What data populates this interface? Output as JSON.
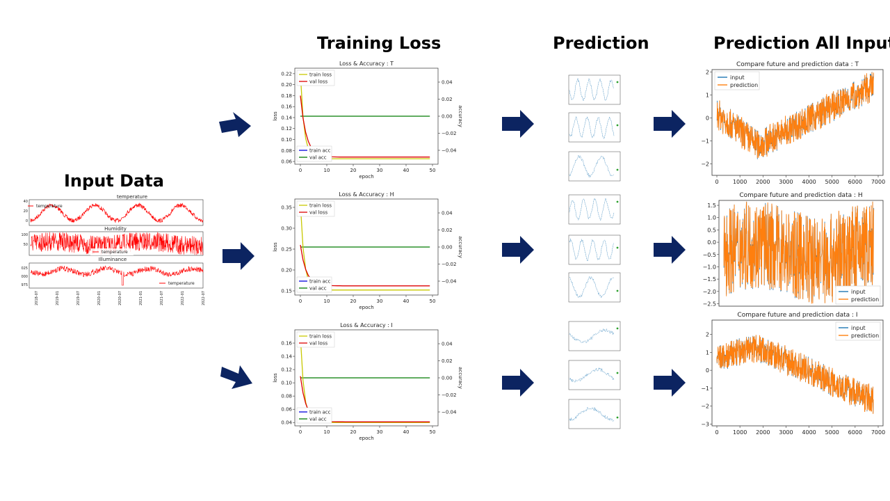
{
  "headings": {
    "input": "Input Data",
    "training": "Training Loss",
    "prediction": "Prediction",
    "prediction_all": "Prediction All Input"
  },
  "colors": {
    "arrow": "#0c2461",
    "red": "#ff0000",
    "train_loss": "#c8c800",
    "val_loss": "#dd0000",
    "train_acc": "#0000dd",
    "val_acc": "#007a00",
    "input": "#1f77b4",
    "prediction": "#ff7f0e"
  },
  "input_panel": {
    "subplots": [
      {
        "title": "temperature",
        "legend": "temperature",
        "yticks": [
          "40",
          "20",
          "0"
        ]
      },
      {
        "title": "Humidity",
        "legend": "temperature",
        "yticks": [
          "100",
          "50"
        ]
      },
      {
        "title": "Illuminance",
        "legend": "temperature",
        "yticks": [
          "1025",
          "1000",
          "975"
        ]
      }
    ],
    "xticks": [
      "2018-07",
      "2019-01",
      "2019-07",
      "2020-01",
      "2020-07",
      "2021-01",
      "2021-07",
      "2022-01",
      "2022-07"
    ]
  },
  "chart_data": [
    {
      "type": "line",
      "title": "Loss & Accuracy : T",
      "xlabel": "epoch",
      "ylabel": "loss",
      "y2label": "accuracy",
      "xlim": [
        0,
        50
      ],
      "xticks": [
        "0",
        "10",
        "20",
        "30",
        "40",
        "50"
      ],
      "ylim": [
        0.055,
        0.23
      ],
      "yticks": [
        "0.22",
        "0.20",
        "0.18",
        "0.16",
        "0.14",
        "0.12",
        "0.10",
        "0.08",
        "0.06"
      ],
      "y2ticks": [
        "0.04",
        "0.02",
        "0.00",
        "−0.02",
        "−0.04"
      ],
      "legend_top": [
        "train loss",
        "val loss"
      ],
      "legend_bottom": [
        "train acc",
        "val acc"
      ],
      "series": [
        {
          "name": "train loss",
          "start": 0.22,
          "end": 0.065
        },
        {
          "name": "val loss",
          "start": 0.18,
          "end": 0.068
        },
        {
          "name": "val acc",
          "value": 0.0
        }
      ]
    },
    {
      "type": "line",
      "title": "Loss & Accuracy : H",
      "xlabel": "epoch",
      "ylabel": "loss",
      "y2label": "accuracy",
      "xlim": [
        0,
        50
      ],
      "xticks": [
        "0",
        "10",
        "20",
        "30",
        "40",
        "50"
      ],
      "ylim": [
        0.14,
        0.37
      ],
      "yticks": [
        "0.35",
        "0.30",
        "0.25",
        "0.20",
        "0.15"
      ],
      "y2ticks": [
        "0.04",
        "0.02",
        "0.00",
        "−0.02",
        "−0.04"
      ],
      "legend_top": [
        "train loss",
        "val loss"
      ],
      "legend_bottom": [
        "train acc",
        "val acc"
      ],
      "series": [
        {
          "name": "train loss",
          "start": 0.36,
          "end": 0.152
        },
        {
          "name": "val loss",
          "start": 0.26,
          "end": 0.162
        },
        {
          "name": "val acc",
          "value": 0.0
        }
      ]
    },
    {
      "type": "line",
      "title": "Loss & Accuracy : I",
      "xlabel": "epoch",
      "ylabel": "loss",
      "y2label": "accuracy",
      "xlim": [
        0,
        50
      ],
      "xticks": [
        "0",
        "10",
        "20",
        "30",
        "40",
        "50"
      ],
      "ylim": [
        0.035,
        0.18
      ],
      "yticks": [
        "0.16",
        "0.14",
        "0.12",
        "0.10",
        "0.08",
        "0.06",
        "0.04"
      ],
      "y2ticks": [
        "0.04",
        "0.02",
        "0.00",
        "−0.02",
        "−0.04"
      ],
      "legend_top": [
        "train loss",
        "val loss"
      ],
      "legend_bottom": [
        "train acc",
        "val acc"
      ],
      "series": [
        {
          "name": "train loss",
          "start": 0.17,
          "end": 0.04
        },
        {
          "name": "val loss",
          "start": 0.11,
          "end": 0.041
        },
        {
          "name": "val acc",
          "value": 0.0
        }
      ]
    },
    {
      "type": "line",
      "title": "Compare future and prediction data : T",
      "xlim": [
        0,
        7000
      ],
      "xticks": [
        "0",
        "1000",
        "2000",
        "3000",
        "4000",
        "5000",
        "6000",
        "7000"
      ],
      "ylim": [
        -2.5,
        2.1
      ],
      "yticks": [
        "2",
        "1",
        "0",
        "−1",
        "−2"
      ],
      "legend": [
        "input",
        "prediction"
      ],
      "legend_loc": "top-left",
      "series": [
        {
          "name": "input"
        },
        {
          "name": "prediction"
        }
      ]
    },
    {
      "type": "line",
      "title": "Compare future and prediction data : H",
      "xlim": [
        0,
        7000
      ],
      "xticks": [],
      "ylim": [
        -2.6,
        1.7
      ],
      "yticks": [
        "1.5",
        "1.0",
        "0.5",
        "0.0",
        "−0.5",
        "−1.0",
        "−1.5",
        "−2.0",
        "−2.5"
      ],
      "legend": [
        "input",
        "prediction"
      ],
      "legend_loc": "bottom-right",
      "series": [
        {
          "name": "input"
        },
        {
          "name": "prediction"
        }
      ]
    },
    {
      "type": "line",
      "title": "Compare future and prediction data : I",
      "xlim": [
        0,
        7000
      ],
      "xticks": [
        "0",
        "1000",
        "2000",
        "3000",
        "4000",
        "5000",
        "6000",
        "7000"
      ],
      "ylim": [
        -3.1,
        2.8
      ],
      "yticks": [
        "2",
        "1",
        "0",
        "−1",
        "−2",
        "−3"
      ],
      "legend": [
        "input",
        "prediction"
      ],
      "legend_loc": "top-right",
      "series": [
        {
          "name": "input"
        },
        {
          "name": "prediction"
        }
      ]
    }
  ]
}
